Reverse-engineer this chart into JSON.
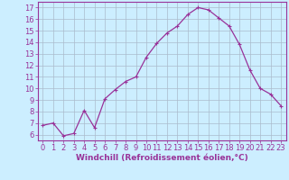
{
  "x": [
    0,
    1,
    2,
    3,
    4,
    5,
    6,
    7,
    8,
    9,
    10,
    11,
    12,
    13,
    14,
    15,
    16,
    17,
    18,
    19,
    20,
    21,
    22,
    23
  ],
  "y": [
    6.8,
    7.0,
    5.9,
    6.1,
    8.1,
    6.6,
    9.1,
    9.9,
    10.6,
    11.0,
    12.7,
    13.9,
    14.8,
    15.4,
    16.4,
    17.0,
    16.8,
    16.1,
    15.4,
    13.8,
    11.6,
    10.0,
    9.5,
    8.5
  ],
  "line_color": "#993399",
  "marker": "+",
  "marker_size": 3,
  "bg_color": "#cceeff",
  "grid_color": "#aabbcc",
  "xlabel": "Windchill (Refroidissement éolien,°C)",
  "xlabel_color": "#993399",
  "tick_color": "#993399",
  "ylim": [
    5.5,
    17.5
  ],
  "xlim": [
    -0.5,
    23.5
  ],
  "yticks": [
    6,
    7,
    8,
    9,
    10,
    11,
    12,
    13,
    14,
    15,
    16,
    17
  ],
  "xticks": [
    0,
    1,
    2,
    3,
    4,
    5,
    6,
    7,
    8,
    9,
    10,
    11,
    12,
    13,
    14,
    15,
    16,
    17,
    18,
    19,
    20,
    21,
    22,
    23
  ],
  "font_size_label": 6.5,
  "font_size_tick": 6.0
}
